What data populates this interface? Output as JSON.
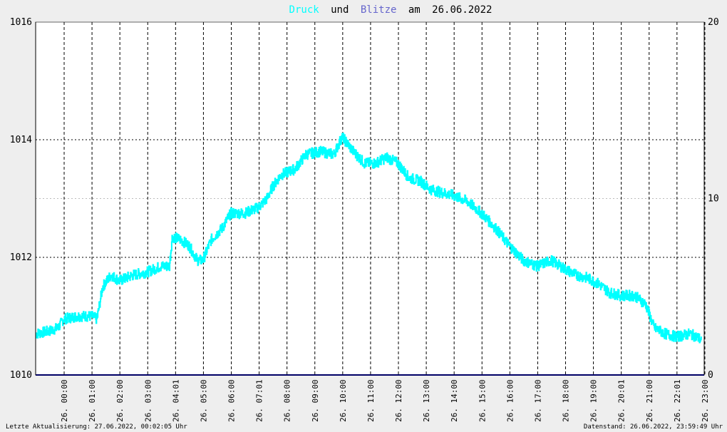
{
  "title": {
    "series1": "Druck",
    "connector1": "und",
    "series2": "Blitze",
    "connector2": "am",
    "date": "26.06.2022"
  },
  "colors": {
    "druck": "#00ffff",
    "blitze": "#6666cc",
    "connector": "#000000",
    "blitze_line": "#000066",
    "background": "#eeeeee",
    "plot_bg": "#ffffff"
  },
  "footer": {
    "left": "Letzte Aktualisierung: 27.06.2022, 00:02:05 Uhr",
    "right": "Datenstand: 26.06.2022, 23:59:49 Uhr"
  },
  "chart_data": {
    "type": "line",
    "y_left": {
      "min": 1010,
      "max": 1016,
      "ticks": [
        "1010",
        "1012",
        "1014",
        "1016"
      ]
    },
    "y_right": {
      "min": 0,
      "max": 20,
      "ticks": [
        "0",
        "10",
        "20"
      ]
    },
    "x_hours": [
      0,
      24
    ],
    "x_ticks": [
      {
        "h": 0.0,
        "label": "26. 00:00"
      },
      {
        "h": 1.0,
        "label": "26. 01:00"
      },
      {
        "h": 2.0,
        "label": "26. 02:00"
      },
      {
        "h": 3.0,
        "label": "26. 03:00"
      },
      {
        "h": 4.0,
        "label": "26. 04:01"
      },
      {
        "h": 5.0,
        "label": "26. 05:00"
      },
      {
        "h": 6.0,
        "label": "26. 06:00"
      },
      {
        "h": 7.0,
        "label": "26. 07:01"
      },
      {
        "h": 8.0,
        "label": "26. 08:00"
      },
      {
        "h": 9.0,
        "label": "26. 09:00"
      },
      {
        "h": 10.0,
        "label": "26. 10:00"
      },
      {
        "h": 11.0,
        "label": "26. 11:00"
      },
      {
        "h": 12.0,
        "label": "26. 12:00"
      },
      {
        "h": 13.0,
        "label": "26. 13:00"
      },
      {
        "h": 14.0,
        "label": "26. 14:00"
      },
      {
        "h": 15.0,
        "label": "26. 15:00"
      },
      {
        "h": 16.0,
        "label": "26. 16:00"
      },
      {
        "h": 17.0,
        "label": "26. 17:00"
      },
      {
        "h": 18.0,
        "label": "26. 18:00"
      },
      {
        "h": 19.0,
        "label": "26. 19:00"
      },
      {
        "h": 20.0,
        "label": "26. 20:01"
      },
      {
        "h": 21.0,
        "label": "26. 21:00"
      },
      {
        "h": 22.0,
        "label": "26. 22:01"
      },
      {
        "h": 23.0,
        "label": "26. 23:00"
      }
    ],
    "series": [
      {
        "name": "Druck",
        "axis": "left",
        "points": [
          [
            0.0,
            1010.7
          ],
          [
            0.5,
            1010.75
          ],
          [
            0.8,
            1010.8
          ],
          [
            1.0,
            1010.95
          ],
          [
            1.5,
            1011.0
          ],
          [
            2.0,
            1011.0
          ],
          [
            2.2,
            1010.95
          ],
          [
            2.4,
            1011.5
          ],
          [
            2.7,
            1011.7
          ],
          [
            3.0,
            1011.6
          ],
          [
            3.5,
            1011.7
          ],
          [
            4.0,
            1011.75
          ],
          [
            4.5,
            1011.85
          ],
          [
            4.8,
            1011.85
          ],
          [
            4.9,
            1012.35
          ],
          [
            5.2,
            1012.3
          ],
          [
            5.5,
            1012.2
          ],
          [
            5.8,
            1011.95
          ],
          [
            6.0,
            1011.95
          ],
          [
            6.3,
            1012.3
          ],
          [
            6.7,
            1012.5
          ],
          [
            7.0,
            1012.75
          ],
          [
            7.5,
            1012.75
          ],
          [
            8.0,
            1012.85
          ],
          [
            8.3,
            1013.0
          ],
          [
            8.5,
            1013.2
          ],
          [
            8.8,
            1013.4
          ],
          [
            9.3,
            1013.5
          ],
          [
            9.7,
            1013.75
          ],
          [
            10.2,
            1013.8
          ],
          [
            10.7,
            1013.75
          ],
          [
            11.0,
            1014.05
          ],
          [
            11.4,
            1013.8
          ],
          [
            11.8,
            1013.6
          ],
          [
            12.2,
            1013.6
          ],
          [
            12.6,
            1013.7
          ],
          [
            13.0,
            1013.6
          ],
          [
            13.4,
            1013.35
          ],
          [
            13.8,
            1013.3
          ],
          [
            14.2,
            1013.15
          ],
          [
            14.6,
            1013.1
          ],
          [
            15.0,
            1013.05
          ],
          [
            15.5,
            1012.95
          ],
          [
            16.0,
            1012.75
          ],
          [
            16.5,
            1012.5
          ],
          [
            17.0,
            1012.2
          ],
          [
            17.5,
            1011.95
          ],
          [
            18.0,
            1011.85
          ],
          [
            18.5,
            1011.95
          ],
          [
            19.0,
            1011.8
          ],
          [
            19.4,
            1011.7
          ],
          [
            19.8,
            1011.65
          ],
          [
            20.2,
            1011.55
          ],
          [
            20.6,
            1011.4
          ],
          [
            21.0,
            1011.35
          ],
          [
            21.5,
            1011.35
          ],
          [
            21.9,
            1011.2
          ],
          [
            22.2,
            1010.8
          ],
          [
            22.6,
            1010.7
          ],
          [
            23.0,
            1010.65
          ],
          [
            23.5,
            1010.7
          ],
          [
            23.9,
            1010.6
          ]
        ]
      },
      {
        "name": "Blitze",
        "axis": "right",
        "points": [
          [
            0,
            0
          ],
          [
            24,
            0
          ]
        ]
      }
    ]
  }
}
